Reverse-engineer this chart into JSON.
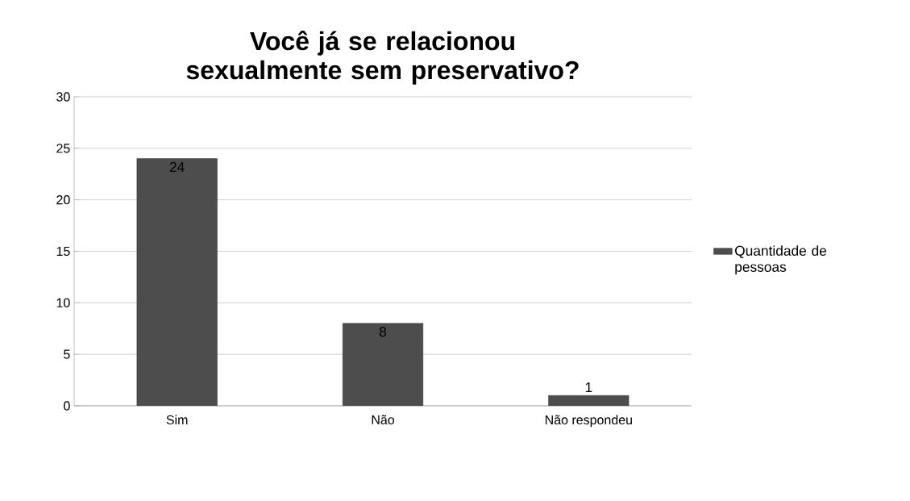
{
  "chart_data": {
    "type": "bar",
    "title": "Você já se relacionou sexualmente sem preservativo?",
    "categories": [
      "Sim",
      "Não",
      "Não respondeu"
    ],
    "series": [
      {
        "name": "Quantidade de pessoas",
        "color": "#4d4d4d",
        "values": [
          24,
          8,
          1
        ]
      }
    ],
    "ylim": [
      0,
      30
    ],
    "yticks": [
      0,
      5,
      10,
      15,
      20,
      25,
      30
    ],
    "grid": "y",
    "legend": "right",
    "data_labels": true
  }
}
